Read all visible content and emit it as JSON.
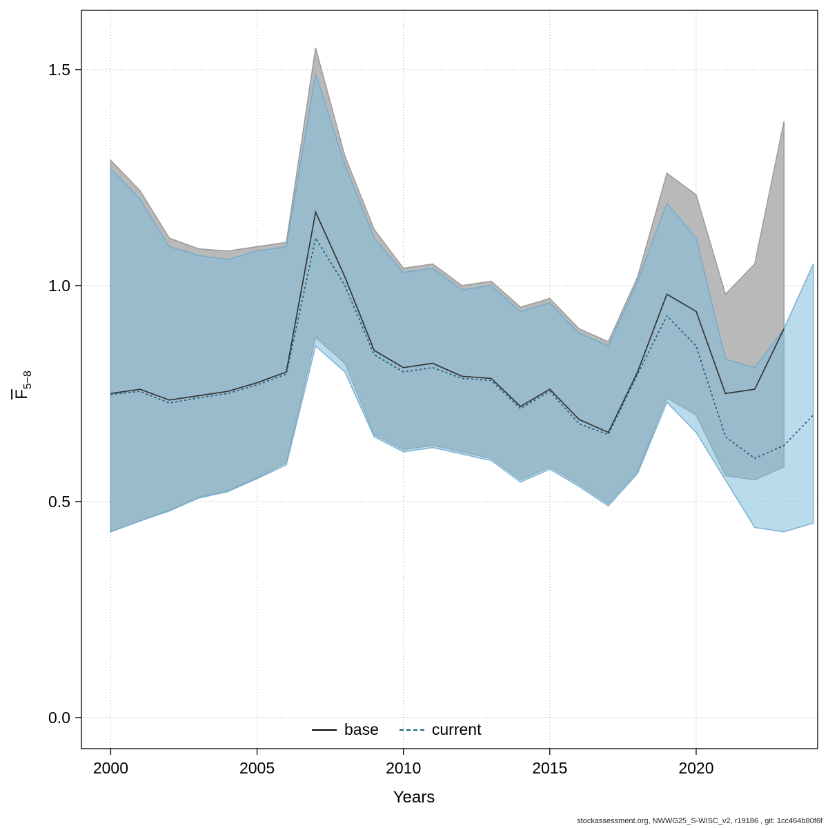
{
  "axes": {
    "x_label": "Years",
    "y_label_main": "F",
    "y_label_sub": "5−8"
  },
  "legend": {
    "items": [
      {
        "label": "base",
        "style": "solid",
        "color": "#000000"
      },
      {
        "label": "current",
        "style": "dotted",
        "color": "#1c5a78"
      }
    ]
  },
  "footer": {
    "text": "stockassessment.org, NWWG25_S-WISC_v2, r19186 , git: 1cc464b80f6f"
  },
  "chart_data": {
    "type": "line",
    "title": "",
    "xlabel": "Years",
    "ylabel": "F_bar_5-8",
    "xlim": [
      1999.0,
      2024.15
    ],
    "ylim": [
      -0.072,
      1.637
    ],
    "xticks": [
      2000,
      2005,
      2010,
      2015,
      2020
    ],
    "xtick_labels": [
      "2000",
      "2005",
      "2010",
      "2015",
      "2020"
    ],
    "yticks": [
      0.0,
      0.5,
      1.0,
      1.5
    ],
    "ytick_labels": [
      "0.0",
      "0.5",
      "1.0",
      "1.5"
    ],
    "grid": "dotted",
    "legend_position": "bottom-center-inside",
    "series": [
      {
        "name": "base",
        "line_style": "solid",
        "color": "#333333",
        "band_color": "#b9b9b9",
        "band_stroke": "#9a9a9a",
        "x": [
          2000,
          2001,
          2002,
          2003,
          2004,
          2005,
          2006,
          2007,
          2008,
          2009,
          2010,
          2011,
          2012,
          2013,
          2014,
          2015,
          2016,
          2017,
          2018,
          2019,
          2020,
          2021,
          2022,
          2023
        ],
        "mean": [
          0.75,
          0.76,
          0.735,
          0.745,
          0.755,
          0.775,
          0.8,
          1.17,
          1.02,
          0.85,
          0.81,
          0.82,
          0.79,
          0.785,
          0.72,
          0.76,
          0.69,
          0.66,
          0.8,
          0.98,
          0.94,
          0.75,
          0.76,
          0.9
        ],
        "lo": [
          0.43,
          0.455,
          0.48,
          0.51,
          0.525,
          0.555,
          0.59,
          0.88,
          0.82,
          0.655,
          0.62,
          0.63,
          0.615,
          0.6,
          0.55,
          0.58,
          0.54,
          0.495,
          0.57,
          0.74,
          0.7,
          0.56,
          0.55,
          0.58
        ],
        "hi": [
          1.29,
          1.22,
          1.11,
          1.085,
          1.08,
          1.09,
          1.1,
          1.55,
          1.3,
          1.13,
          1.04,
          1.05,
          1.0,
          1.01,
          0.95,
          0.97,
          0.9,
          0.87,
          1.02,
          1.26,
          1.21,
          0.98,
          1.05,
          1.38
        ]
      },
      {
        "name": "current",
        "line_style": "dotted",
        "color": "#1c5a78",
        "band_color": "rgba(130,190,220,0.55)",
        "band_stroke": "rgba(110,170,205,0.9)",
        "x": [
          2000,
          2001,
          2002,
          2003,
          2004,
          2005,
          2006,
          2007,
          2008,
          2009,
          2010,
          2011,
          2012,
          2013,
          2014,
          2015,
          2016,
          2017,
          2018,
          2019,
          2020,
          2021,
          2022,
          2023,
          2024
        ],
        "mean": [
          0.748,
          0.755,
          0.728,
          0.74,
          0.75,
          0.77,
          0.795,
          1.11,
          1.0,
          0.84,
          0.8,
          0.81,
          0.785,
          0.78,
          0.715,
          0.755,
          0.68,
          0.655,
          0.795,
          0.93,
          0.86,
          0.65,
          0.6,
          0.63,
          0.7
        ],
        "lo": [
          0.43,
          0.455,
          0.478,
          0.508,
          0.523,
          0.553,
          0.585,
          0.86,
          0.8,
          0.65,
          0.615,
          0.625,
          0.61,
          0.595,
          0.545,
          0.575,
          0.535,
          0.49,
          0.565,
          0.73,
          0.66,
          0.55,
          0.44,
          0.43,
          0.45
        ],
        "hi": [
          1.27,
          1.2,
          1.09,
          1.07,
          1.06,
          1.08,
          1.09,
          1.49,
          1.28,
          1.11,
          1.03,
          1.04,
          0.99,
          1.0,
          0.94,
          0.96,
          0.89,
          0.86,
          1.01,
          1.19,
          1.11,
          0.83,
          0.81,
          0.9,
          1.05
        ]
      }
    ]
  }
}
